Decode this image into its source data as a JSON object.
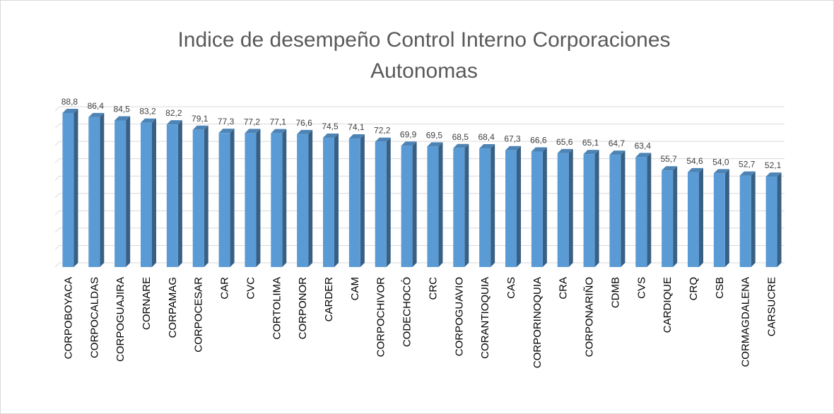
{
  "chart_data": {
    "type": "bar",
    "title": [
      "Indice de desempeño Control Interno Corporaciones",
      "Autonomas"
    ],
    "categories": [
      "CORPOBOYACA",
      "CORPOCALDAS",
      "CORPOGUAJIRA",
      "CORNARE",
      "CORPAMAG",
      "CORPOCESAR",
      "CAR",
      "CVC",
      "CORTOLIMA",
      "CORPONOR",
      "CARDER",
      "CAM",
      "CORPOCHIVOR",
      "CODECHOCÓ",
      "CRC",
      "CORPOGUAVIO",
      "CORANTIOQUIA",
      "CAS",
      "CORPORINOQUIA",
      "CRA",
      "CORPONARIÑO",
      "CDMB",
      "CVS",
      "CARDIQUE",
      "CRQ",
      "CSB",
      "CORMAGDALENA",
      "CARSUCRE"
    ],
    "values": [
      88.8,
      86.4,
      84.5,
      83.2,
      82.2,
      79.1,
      77.3,
      77.2,
      77.1,
      76.6,
      74.5,
      74.1,
      72.2,
      69.9,
      69.5,
      68.5,
      68.4,
      67.3,
      66.6,
      65.6,
      65.1,
      64.7,
      63.4,
      55.7,
      54.6,
      54.0,
      52.7,
      52.1
    ],
    "value_labels": [
      "88,8",
      "86,4",
      "84,5",
      "83,2",
      "82,2",
      "79,1",
      "77,3",
      "77,2",
      "77,1",
      "76,6",
      "74,5",
      "74,1",
      "72,2",
      "69,9",
      "69,5",
      "68,5",
      "68,4",
      "67,3",
      "66,6",
      "65,6",
      "65,1",
      "64,7",
      "63,4",
      "55,7",
      "54,6",
      "54,0",
      "52,7",
      "52,1"
    ],
    "color": "#5b9bd5",
    "ylim": [
      0,
      90
    ],
    "yticks": [
      0,
      10,
      20,
      30,
      40,
      50,
      60,
      70,
      80,
      90
    ],
    "grid": true
  }
}
